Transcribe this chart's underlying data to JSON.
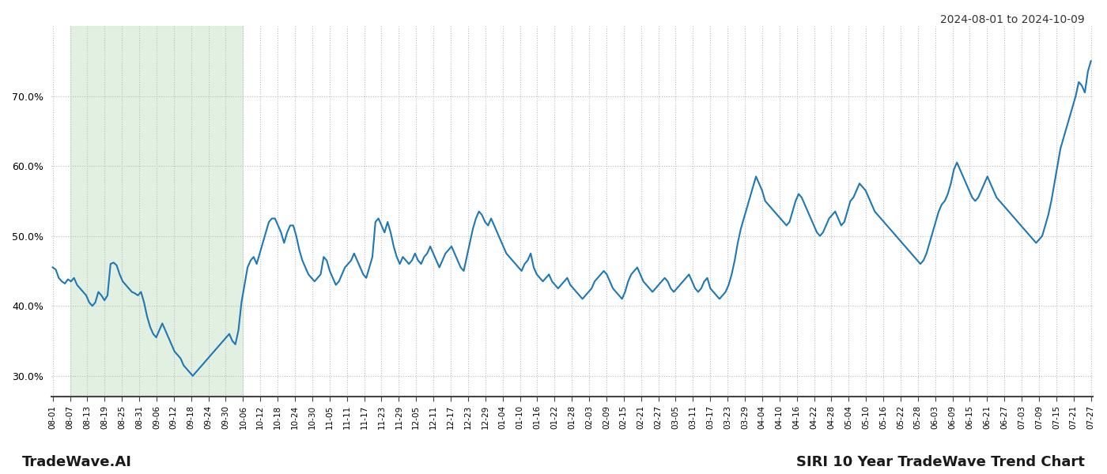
{
  "title_top_right": "2024-08-01 to 2024-10-09",
  "title_bottom_left": "TradeWave.AI",
  "title_bottom_right": "SIRI 10 Year TradeWave Trend Chart",
  "line_color": "#1f77b4",
  "line_width": 1.5,
  "shading_color": "#d6ead6",
  "shading_alpha": 0.7,
  "background_color": "#ffffff",
  "grid_color": "#bbbbbb",
  "ylim": [
    27.0,
    80.0
  ],
  "yticks": [
    30.0,
    40.0,
    50.0,
    60.0,
    70.0
  ],
  "shading_start_label": "08-07",
  "shading_end_label": "10-06",
  "x_labels": [
    "08-01",
    "08-07",
    "08-13",
    "08-19",
    "08-25",
    "08-31",
    "09-06",
    "09-12",
    "09-18",
    "09-24",
    "09-30",
    "10-06",
    "10-12",
    "10-18",
    "10-24",
    "10-30",
    "11-05",
    "11-11",
    "11-17",
    "11-23",
    "11-29",
    "12-05",
    "12-11",
    "12-17",
    "12-23",
    "12-29",
    "01-04",
    "01-10",
    "01-16",
    "01-22",
    "01-28",
    "02-03",
    "02-09",
    "02-15",
    "02-21",
    "02-27",
    "03-05",
    "03-11",
    "03-17",
    "03-23",
    "03-29",
    "04-04",
    "04-10",
    "04-16",
    "04-22",
    "04-28",
    "05-04",
    "05-10",
    "05-16",
    "05-22",
    "05-28",
    "06-03",
    "06-09",
    "06-15",
    "06-21",
    "06-27",
    "07-03",
    "07-09",
    "07-15",
    "07-21",
    "07-27"
  ],
  "values": [
    45.5,
    45.2,
    44.0,
    43.5,
    43.2,
    43.8,
    43.5,
    44.0,
    43.0,
    42.5,
    42.0,
    41.5,
    40.5,
    40.0,
    40.5,
    42.0,
    41.5,
    40.8,
    41.5,
    46.0,
    46.2,
    45.8,
    44.5,
    43.5,
    43.0,
    42.5,
    42.0,
    41.8,
    41.5,
    42.0,
    40.5,
    38.5,
    37.0,
    36.0,
    35.5,
    36.5,
    37.5,
    36.5,
    35.5,
    34.5,
    33.5,
    33.0,
    32.5,
    31.5,
    31.0,
    30.5,
    30.0,
    30.5,
    31.0,
    31.5,
    32.0,
    32.5,
    33.0,
    33.5,
    34.0,
    34.5,
    35.0,
    35.5,
    36.0,
    35.0,
    34.5,
    36.5,
    40.5,
    43.0,
    45.5,
    46.5,
    47.0,
    46.0,
    47.5,
    49.0,
    50.5,
    52.0,
    52.5,
    52.5,
    51.5,
    50.5,
    49.0,
    50.5,
    51.5,
    51.5,
    50.0,
    48.0,
    46.5,
    45.5,
    44.5,
    44.0,
    43.5,
    44.0,
    44.5,
    47.0,
    46.5,
    45.0,
    44.0,
    43.0,
    43.5,
    44.5,
    45.5,
    46.0,
    46.5,
    47.5,
    46.5,
    45.5,
    44.5,
    44.0,
    45.5,
    47.0,
    52.0,
    52.5,
    51.5,
    50.5,
    52.0,
    50.5,
    48.5,
    47.0,
    46.0,
    47.0,
    46.5,
    46.0,
    46.5,
    47.5,
    46.5,
    46.0,
    47.0,
    47.5,
    48.5,
    47.5,
    46.5,
    45.5,
    46.5,
    47.5,
    48.0,
    48.5,
    47.5,
    46.5,
    45.5,
    45.0,
    47.0,
    49.0,
    51.0,
    52.5,
    53.5,
    53.0,
    52.0,
    51.5,
    52.5,
    51.5,
    50.5,
    49.5,
    48.5,
    47.5,
    47.0,
    46.5,
    46.0,
    45.5,
    45.0,
    46.0,
    46.5,
    47.5,
    45.5,
    44.5,
    44.0,
    43.5,
    44.0,
    44.5,
    43.5,
    43.0,
    42.5,
    43.0,
    43.5,
    44.0,
    43.0,
    42.5,
    42.0,
    41.5,
    41.0,
    41.5,
    42.0,
    42.5,
    43.5,
    44.0,
    44.5,
    45.0,
    44.5,
    43.5,
    42.5,
    42.0,
    41.5,
    41.0,
    42.0,
    43.5,
    44.5,
    45.0,
    45.5,
    44.5,
    43.5,
    43.0,
    42.5,
    42.0,
    42.5,
    43.0,
    43.5,
    44.0,
    43.5,
    42.5,
    42.0,
    42.5,
    43.0,
    43.5,
    44.0,
    44.5,
    43.5,
    42.5,
    42.0,
    42.5,
    43.5,
    44.0,
    42.5,
    42.0,
    41.5,
    41.0,
    41.5,
    42.0,
    43.0,
    44.5,
    46.5,
    49.0,
    51.0,
    52.5,
    54.0,
    55.5,
    57.0,
    58.5,
    57.5,
    56.5,
    55.0,
    54.5,
    54.0,
    53.5,
    53.0,
    52.5,
    52.0,
    51.5,
    52.0,
    53.5,
    55.0,
    56.0,
    55.5,
    54.5,
    53.5,
    52.5,
    51.5,
    50.5,
    50.0,
    50.5,
    51.5,
    52.5,
    53.0,
    53.5,
    52.5,
    51.5,
    52.0,
    53.5,
    55.0,
    55.5,
    56.5,
    57.5,
    57.0,
    56.5,
    55.5,
    54.5,
    53.5,
    53.0,
    52.5,
    52.0,
    51.5,
    51.0,
    50.5,
    50.0,
    49.5,
    49.0,
    48.5,
    48.0,
    47.5,
    47.0,
    46.5,
    46.0,
    46.5,
    47.5,
    49.0,
    50.5,
    52.0,
    53.5,
    54.5,
    55.0,
    56.0,
    57.5,
    59.5,
    60.5,
    59.5,
    58.5,
    57.5,
    56.5,
    55.5,
    55.0,
    55.5,
    56.5,
    57.5,
    58.5,
    57.5,
    56.5,
    55.5,
    55.0,
    54.5,
    54.0,
    53.5,
    53.0,
    52.5,
    52.0,
    51.5,
    51.0,
    50.5,
    50.0,
    49.5,
    49.0,
    49.5,
    50.0,
    51.5,
    53.0,
    55.0,
    57.5,
    60.0,
    62.5,
    64.0,
    65.5,
    67.0,
    68.5,
    70.0,
    72.0,
    71.5,
    70.5,
    73.5,
    75.0
  ]
}
